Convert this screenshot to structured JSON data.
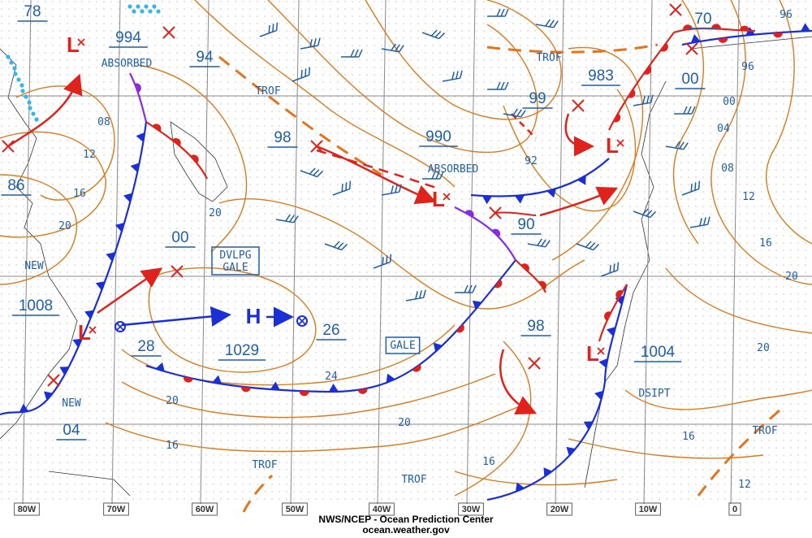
{
  "pressure_centers": [
    "78",
    "994",
    "94",
    "983",
    "70",
    "99",
    "98",
    "990",
    "86",
    "00",
    "90",
    "1008",
    "28",
    "1029",
    "26",
    "98",
    "1004",
    "04",
    "00"
  ],
  "symbols": {
    "high": "H",
    "low": "L"
  },
  "annotations": [
    "ABSORBED",
    "TROF",
    "ABSORBED",
    "GALE",
    "NEW",
    "NEW",
    "DSIPT",
    "TROF",
    "TROF",
    "TROF",
    "TROF"
  ],
  "developing_gale": [
    "DVLPG",
    "GALE"
  ],
  "isobar_labels": [
    "08",
    "12",
    "16",
    "20",
    "20",
    "24",
    "20",
    "20",
    "16",
    "16",
    "92",
    "96",
    "96",
    "00",
    "04",
    "08",
    "12",
    "16",
    "20",
    "20",
    "16",
    "12"
  ],
  "longitude_labels": [
    "80W",
    "70W",
    "60W",
    "50W",
    "40W",
    "30W",
    "20W",
    "10W",
    "0"
  ],
  "footer": {
    "line1": "NWS/NCEP - Ocean Prediction Center",
    "line2": "ocean.weather.gov"
  }
}
